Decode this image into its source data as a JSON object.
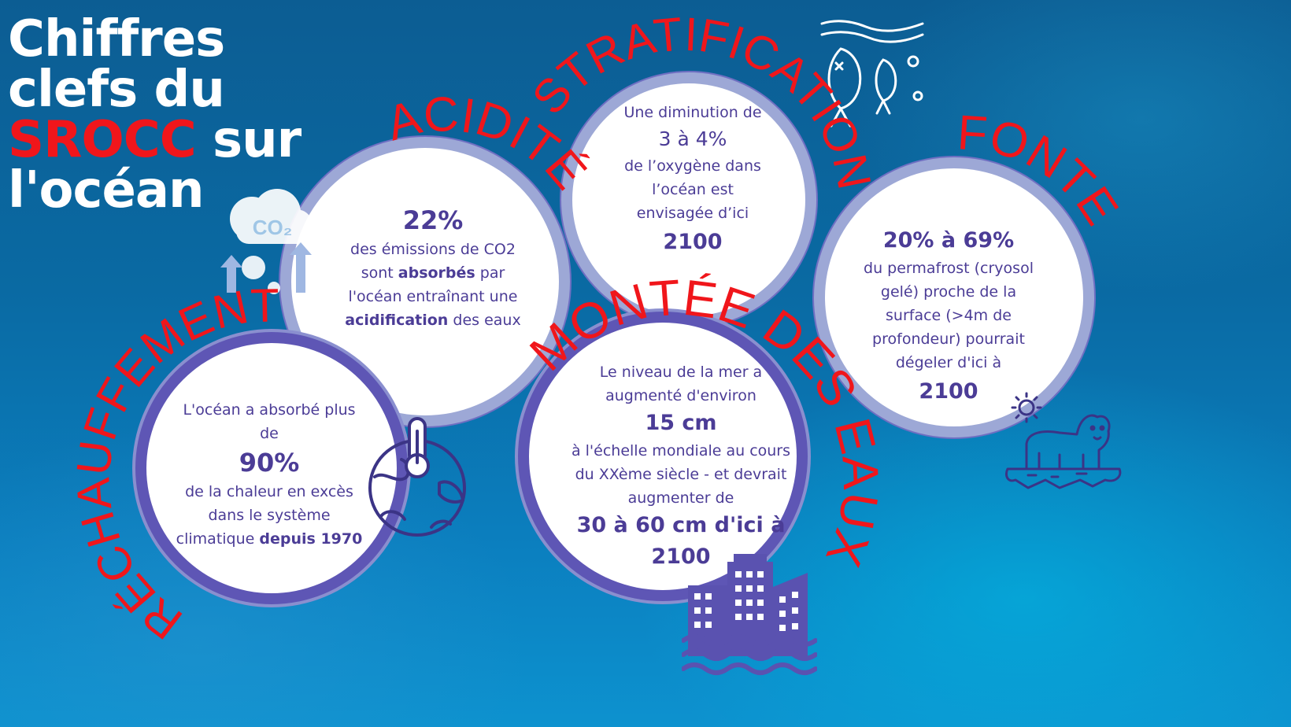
{
  "title": {
    "line1": "Chiffres",
    "line2": "clefs du",
    "line3_highlight": "SROCC",
    "line3_rest": " sur",
    "line4": "l'océan"
  },
  "colors": {
    "accent_red": "#f0161b",
    "text_purple": "#4b3c96",
    "ring_purple": "#6f6fc2"
  },
  "topics": {
    "rechauffement": {
      "label": "RÉCHAUFFEMENT",
      "line1": "L'océan a absorbé plus de",
      "value": "90%",
      "line2": "de la chaleur en excès dans le système",
      "line3_before": "climatique ",
      "line3_bold": "depuis 1970",
      "icon": "thermometer-earth-icon"
    },
    "acidite": {
      "label": "ACIDITÉ",
      "value": "22%",
      "line1": "des émissions de CO2",
      "line2_before": "sont ",
      "line2_bold": "absorbés",
      "line2_after": " par",
      "line3": "l'océan entraînant une",
      "line4_bold": "acidification",
      "line4_after": " des eaux",
      "icon": "co2-cloud-icon",
      "icon_text": "CO₂"
    },
    "stratification": {
      "label": "STRATIFICATION",
      "line1": "Une diminution de",
      "value": "3 à 4%",
      "line2": "de l’oxygène dans l’océan est envisagée d’ici",
      "year": "2100",
      "icon": "fish-icon"
    },
    "montee": {
      "label": "MONTÉE DES EAUX",
      "line1": "Le niveau de la mer a augmenté d'environ",
      "value": "15 cm",
      "line2": "à l'échelle mondiale au cours du XXème siècle - et devrait augmenter de",
      "value2": "30 à 60 cm d'ici à",
      "year": "2100",
      "icon": "flooded-city-icon"
    },
    "fonte": {
      "label": "FONTE",
      "value": "20% à 69%",
      "line1": "du permafrost (cryosol gelé) proche de la surface (>4m de profondeur) pourrait dégeler d'ici à",
      "year": "2100",
      "icon": "polar-bear-icon"
    }
  }
}
